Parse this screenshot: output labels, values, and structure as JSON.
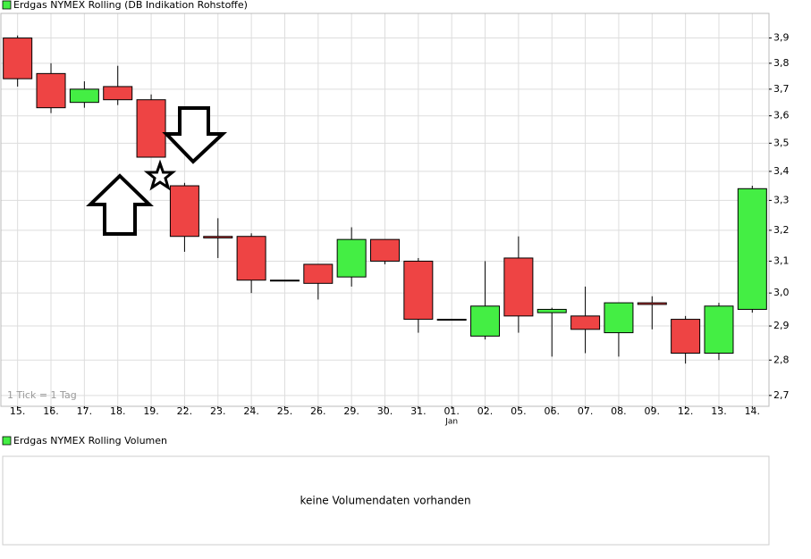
{
  "chart_data": {
    "type": "candlestick",
    "title": "Erdgas NYMEX Rolling (DB Indikation Rohstoffe)",
    "legend_color": "#44ee44",
    "note": "1 Tick = 1 Tag",
    "month_label": "Jan",
    "categories": [
      "15.",
      "16.",
      "17.",
      "18.",
      "19.",
      "22.",
      "23.",
      "24.",
      "25.",
      "26.",
      "29.",
      "30.",
      "31.",
      "01.",
      "02.",
      "05.",
      "06.",
      "07.",
      "08.",
      "09.",
      "12.",
      "13.",
      "14."
    ],
    "open": [
      3.9,
      3.76,
      3.65,
      3.71,
      3.66,
      3.35,
      3.18,
      3.18,
      3.04,
      3.09,
      3.05,
      3.17,
      3.1,
      2.92,
      2.87,
      3.11,
      2.94,
      2.93,
      2.88,
      2.97,
      2.92,
      2.82,
      2.95
    ],
    "high": [
      3.91,
      3.8,
      3.73,
      3.79,
      3.68,
      3.36,
      3.24,
      3.19,
      3.04,
      3.09,
      3.21,
      3.17,
      3.11,
      2.92,
      3.1,
      3.18,
      2.955,
      3.02,
      2.97,
      2.99,
      2.93,
      2.97,
      3.35
    ],
    "low": [
      3.71,
      3.61,
      3.63,
      3.64,
      3.45,
      3.13,
      3.11,
      3.0,
      3.04,
      2.98,
      3.02,
      3.09,
      2.88,
      2.92,
      2.86,
      2.88,
      2.81,
      2.82,
      2.81,
      2.89,
      2.79,
      2.8,
      2.94
    ],
    "close": [
      3.74,
      3.63,
      3.7,
      3.66,
      3.45,
      3.18,
      3.175,
      3.04,
      3.04,
      3.03,
      3.17,
      3.1,
      2.92,
      2.92,
      2.96,
      2.93,
      2.95,
      2.89,
      2.97,
      2.965,
      2.82,
      2.96,
      3.34
    ],
    "up_color": "#44ee44",
    "down_color": "#ee4444",
    "log_scale": true,
    "grid": true,
    "ylim": [
      2.67,
      4.0
    ],
    "yticks": [
      {
        "value": 2.7,
        "label": "2,7"
      },
      {
        "value": 2.8,
        "label": "2,8"
      },
      {
        "value": 2.9,
        "label": "2,9"
      },
      {
        "value": 3.0,
        "label": "3,0"
      },
      {
        "value": 3.1,
        "label": "3,1"
      },
      {
        "value": 3.2,
        "label": "3,2"
      },
      {
        "value": 3.3,
        "label": "3,3"
      },
      {
        "value": 3.4,
        "label": "3,4"
      },
      {
        "value": 3.5,
        "label": "3,5"
      },
      {
        "value": 3.6,
        "label": "3,6"
      },
      {
        "value": 3.7,
        "label": "3,7"
      },
      {
        "value": 3.8,
        "label": "3,8"
      },
      {
        "value": 3.9,
        "label": "3,9"
      }
    ]
  },
  "volume_panel": {
    "title": "Erdgas NYMEX Rolling Volumen",
    "legend_color": "#44ee44",
    "message": "keine Volumendaten vorhanden"
  }
}
